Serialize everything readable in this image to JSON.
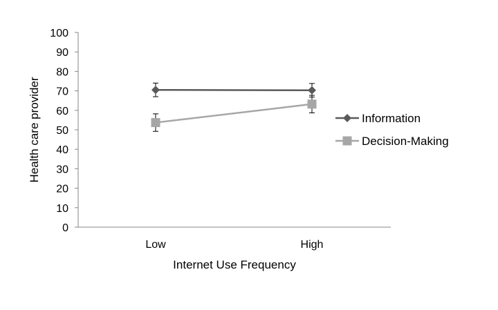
{
  "chart_data": {
    "type": "line",
    "title": "",
    "xlabel": "Internet Use Frequency",
    "ylabel": "Health care provider",
    "categories": [
      "Low",
      "High"
    ],
    "ylim": [
      0,
      100
    ],
    "yticks": [
      0,
      10,
      20,
      30,
      40,
      50,
      60,
      70,
      80,
      90,
      100
    ],
    "grid": false,
    "legend_position": "right",
    "error_bars": true,
    "series": [
      {
        "name": "Information",
        "values": [
          70.5,
          70.3
        ],
        "errors": [
          3.5,
          3.5
        ],
        "color": "#595959",
        "marker": "diamond"
      },
      {
        "name": "Decision-Making",
        "values": [
          53.7,
          63.2
        ],
        "errors": [
          4.5,
          4.5
        ],
        "color": "#a6a6a6",
        "marker": "square"
      }
    ]
  }
}
